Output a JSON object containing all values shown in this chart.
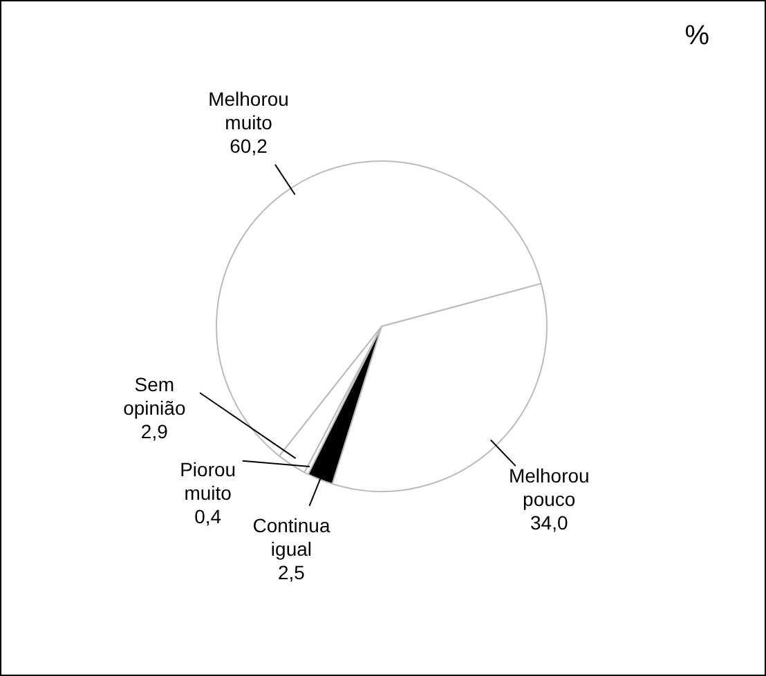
{
  "chart_data": {
    "type": "pie",
    "title": "%",
    "categories": [
      "Melhorou pouco",
      "Continua igual",
      "Piorou muito",
      "Sem opinião",
      "Melhorou muito"
    ],
    "values": [
      34.0,
      2.5,
      0.4,
      2.9,
      60.2
    ],
    "value_labels": [
      "34,0",
      "2,5",
      "0,4",
      "2,9",
      "60,2"
    ],
    "colors": [
      "#ffffff",
      "#000000",
      "#ffffff",
      "#ffffff",
      "#ffffff"
    ],
    "legend": false
  }
}
